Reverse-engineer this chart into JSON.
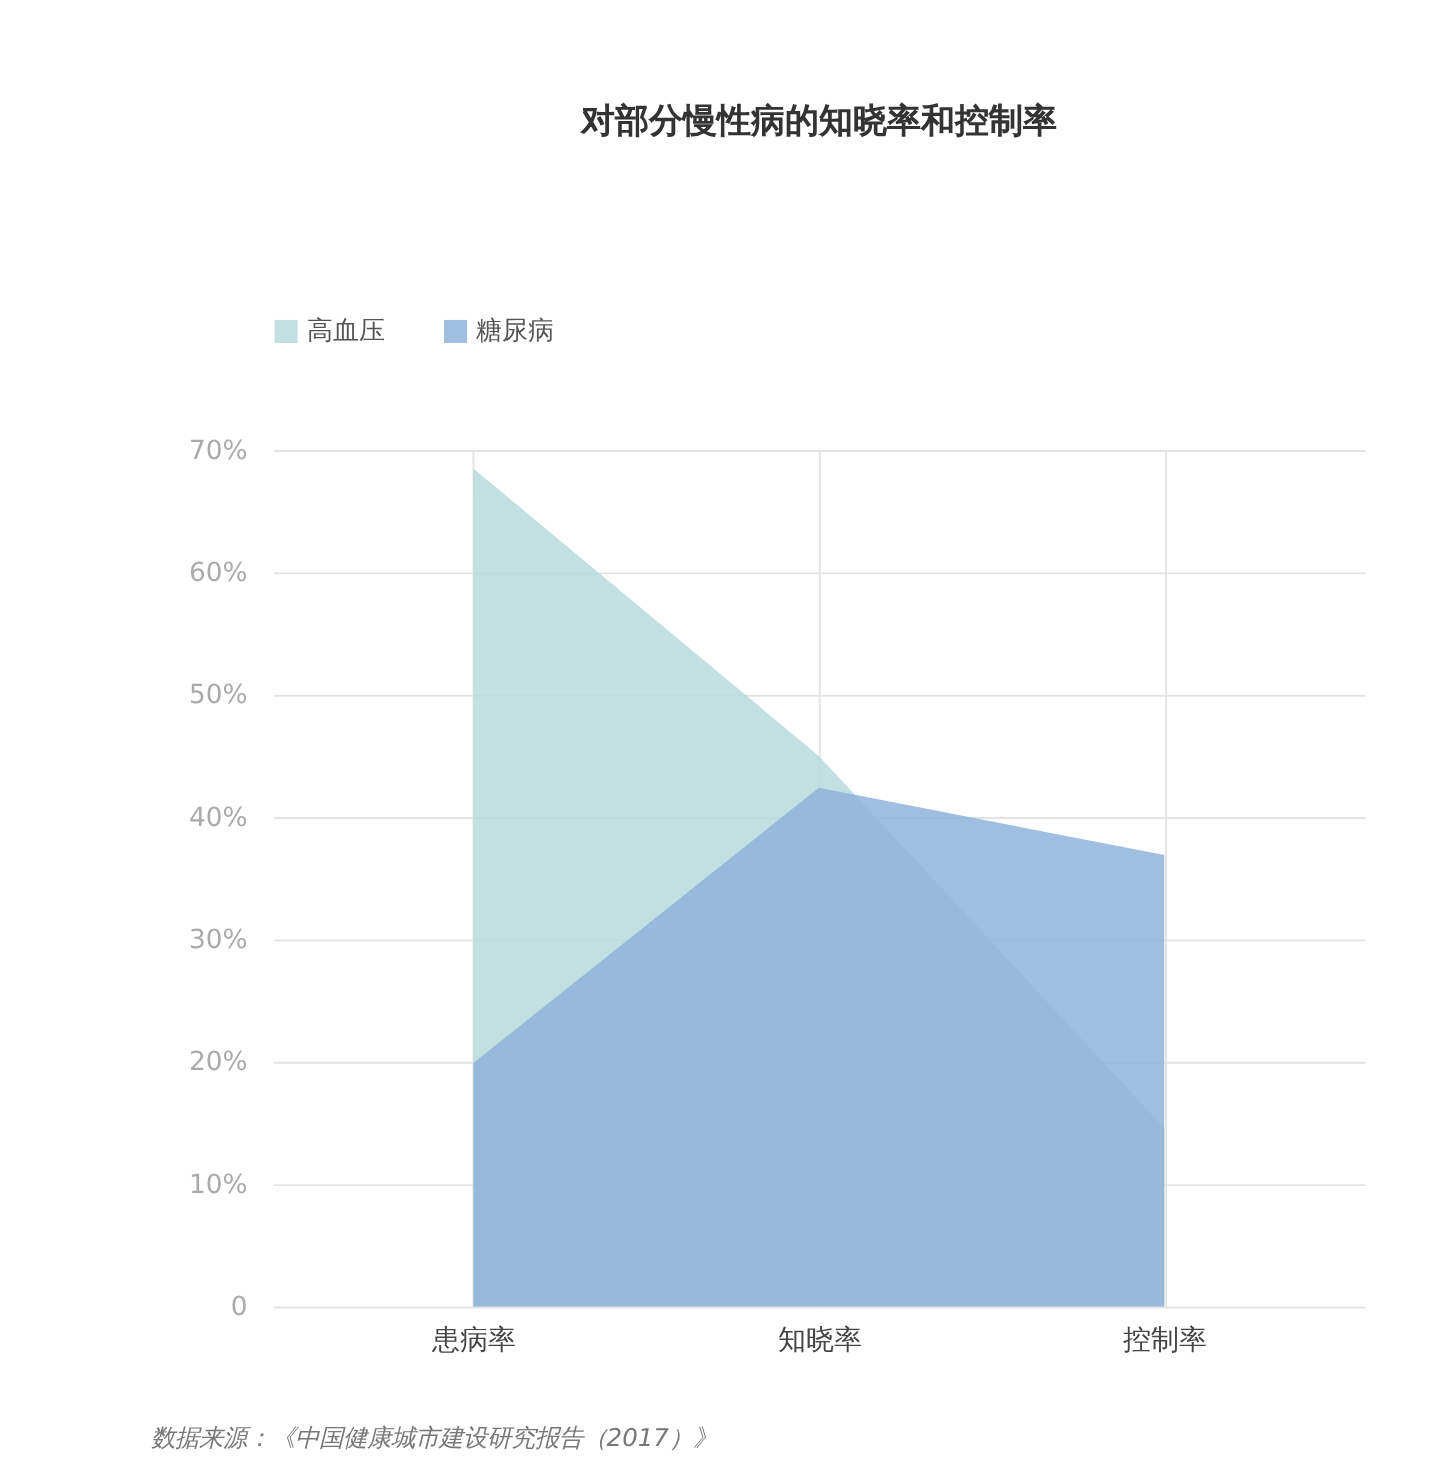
{
  "chart_data": {
    "type": "area",
    "title": "对部分慢性病的知晓率和控制率",
    "categories": [
      "患病率",
      "知晓率",
      "控制率"
    ],
    "series": [
      {
        "name": "高血压",
        "color": "#b7dbdc",
        "values": [
          68.5,
          45,
          14.6
        ]
      },
      {
        "name": "糖尿病",
        "color": "#8fb3da",
        "values": [
          19.9,
          42.4,
          36.9
        ]
      }
    ],
    "ylim": [
      0,
      70
    ],
    "yticks": [
      0,
      {
        "value": 10,
        "label": "10%"
      },
      {
        "value": 20,
        "label": "20%"
      },
      {
        "value": 30,
        "label": "30%"
      },
      {
        "value": 40,
        "label": "40%"
      },
      {
        "value": 50,
        "label": "50%"
      },
      {
        "value": 60,
        "label": "60%"
      },
      {
        "value": 70,
        "label": "70%"
      }
    ],
    "grid": true,
    "legend": "top left",
    "annotations": [
      "数据来源：《中国健康城市建设研究报告（2017）》"
    ]
  }
}
